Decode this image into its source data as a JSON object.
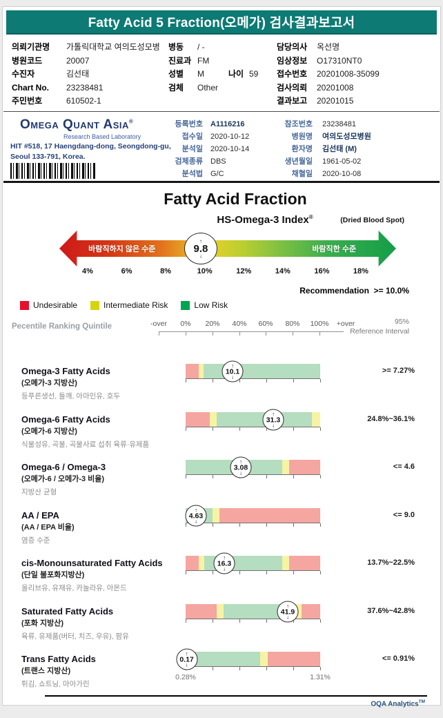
{
  "page": {
    "banner_title": "Fatty Acid 5 Fraction(오메가) 검사결과보고서",
    "footer_brand": "OQA Analytics",
    "footer_tm": "TM"
  },
  "patient": {
    "rows_left": [
      {
        "label": "의뢰기관명",
        "value": "가톨릭대학교 여의도성모병"
      },
      {
        "label": "병원코드",
        "value": "20007"
      },
      {
        "label": "수진자",
        "value": "김선태"
      },
      {
        "label": "Chart No.",
        "value": "23238481"
      },
      {
        "label": "주민번호",
        "value": "610502-1"
      }
    ],
    "rows_mid": [
      {
        "label": "병동",
        "value": "/ -"
      },
      {
        "label": "진료과",
        "value": "FM"
      },
      {
        "label": "성별",
        "value": "M",
        "label2": "나이",
        "value2": "59"
      },
      {
        "label": "검체",
        "value": "Other"
      }
    ],
    "rows_right": [
      {
        "label": "담당의사",
        "value": "옥선명"
      },
      {
        "label": "임상정보",
        "value": "O17310NT0"
      },
      {
        "label": "접수번호",
        "value": "20201008-35099"
      },
      {
        "label": "검사의뢰",
        "value": "20201008"
      },
      {
        "label": "결과보고",
        "value": "20201015"
      }
    ]
  },
  "lab": {
    "name": "Omega Quant Asia",
    "reg": "®",
    "tagline": "Research Based Laboratory",
    "address_line1": "HIT #518, 17 Haengdang-dong, Seongdong-gu,",
    "address_line2": "Seoul 133-791, Korea.",
    "fields_mid": [
      {
        "label": "등록번호",
        "value": "A1116216",
        "strong": true
      },
      {
        "label": "접수일",
        "value": "2020-10-12"
      },
      {
        "label": "분석일",
        "value": "2020-10-14"
      },
      {
        "label": "검체종류",
        "value": "DBS"
      },
      {
        "label": "분석법",
        "value": "G/C"
      }
    ],
    "fields_right": [
      {
        "label": "참조번호",
        "value": "23238481"
      },
      {
        "label": "병원명",
        "value": "여의도성모병원",
        "strong": true
      },
      {
        "label": "환자명",
        "value": "김선태 (M)",
        "strong": true
      },
      {
        "label": "생년월일",
        "value": "1961-05-02"
      },
      {
        "label": "채혈일",
        "value": "2020-10-08"
      }
    ]
  },
  "report": {
    "title": "Fatty Acid Fraction",
    "index_label": "HS-Omega-3 Index",
    "index_reg": "®",
    "sample_type": "(Dried Blood Spot)",
    "gauge": {
      "value": "9.8",
      "left_label": "바람직하지 않은 수준",
      "right_label": "바람직한 수준",
      "scale": [
        "4%",
        "6%",
        "8%",
        "10%",
        "12%",
        "14%",
        "16%",
        "18%"
      ],
      "value_pos_pct": 42
    },
    "recommendation": "Recommendation  >= 10.0%",
    "legend": [
      {
        "label": "Undesirable",
        "color": "#e8112d"
      },
      {
        "label": "Intermediate Risk",
        "color": "#d6d40f"
      },
      {
        "label": "Low Risk",
        "color": "#00a551"
      }
    ],
    "quintile_header": "Pecentile Ranking Quintile",
    "axis_labels": [
      "-over",
      "0%",
      "20%",
      "40%",
      "60%",
      "80%",
      "100%",
      "+over"
    ],
    "ref_header_line1": "95%",
    "ref_header_line2": "Reference Interval"
  },
  "rows": [
    {
      "title": "Omega-3 Fatty Acids",
      "subtitle": "(오메가-3 지방산)",
      "desc": "등푸른생선, 들깨, 아마인유, 호두",
      "value": "10.1",
      "reference": ">= 7.27%",
      "marker_pos": 34.9,
      "segments": [
        {
          "c": "r",
          "w": 9.7
        },
        {
          "c": "y",
          "w": 3.6
        },
        {
          "c": "g",
          "w": 86.7
        }
      ]
    },
    {
      "title": "Omega-6 Fatty Acids",
      "subtitle": "(오메가-6 지방산)",
      "desc": "식물성유, 곡물, 곡물사료 섭취 육류·유제품",
      "value": "31.3",
      "reference": "24.8%~36.1%",
      "marker_pos": 65.1,
      "segments": [
        {
          "c": "r",
          "w": 17.9
        },
        {
          "c": "y",
          "w": 5.2
        },
        {
          "c": "g",
          "w": 70.7
        },
        {
          "c": "y",
          "w": 6.2
        }
      ]
    },
    {
      "title": "Omega-6 / Omega-3",
      "subtitle": "(오메가-6 / 오메가-3 비율)",
      "desc": "지방산 균형",
      "value": "3.08",
      "reference": "<= 4.6",
      "marker_pos": 41.0,
      "segments": [
        {
          "c": "g",
          "w": 71.8
        },
        {
          "c": "y",
          "w": 5.1
        },
        {
          "c": "r",
          "w": 23.1
        }
      ]
    },
    {
      "title": "AA / EPA",
      "subtitle": "(AA / EPA 비율)",
      "desc": "염증 수준",
      "value": "4.63",
      "reference": "<= 9.0",
      "marker_pos": 7.7,
      "segments": [
        {
          "c": "g",
          "w": 20.0
        },
        {
          "c": "y",
          "w": 5.1
        },
        {
          "c": "r",
          "w": 74.9
        }
      ]
    },
    {
      "title": "cis-Monounsaturated Fatty Acids",
      "subtitle": "(단일 불포화지방산)",
      "desc": "올리브유, 유채유, 카놀라유, 아몬드",
      "value": "16.3",
      "reference": "13.7%~22.5%",
      "marker_pos": 28.7,
      "segments": [
        {
          "c": "r",
          "w": 9.7
        },
        {
          "c": "y",
          "w": 4.1
        },
        {
          "c": "g",
          "w": 58.0
        },
        {
          "c": "y",
          "w": 5.1
        },
        {
          "c": "r",
          "w": 23.1
        }
      ]
    },
    {
      "title": "Saturated Fatty Acids",
      "subtitle": "(포화 지방산)",
      "desc": "육류, 유제품(버터, 치즈, 우유), 팜유",
      "value": "41.9",
      "reference": "37.6%~42.8%",
      "marker_pos": 75.9,
      "segments": [
        {
          "c": "r",
          "w": 23.1
        },
        {
          "c": "y",
          "w": 5.1
        },
        {
          "c": "g",
          "w": 52.8
        },
        {
          "c": "y",
          "w": 5.2
        },
        {
          "c": "r",
          "w": 13.8
        }
      ]
    },
    {
      "title": "Trans Fatty Acids",
      "subtitle": "(트랜스 지방산)",
      "desc": "튀김, 쇼트닝, 마아가린",
      "value": "0.17",
      "reference": "<= 0.91%",
      "marker_pos": 0.8,
      "segments": [
        {
          "c": "g",
          "w": 55.4
        },
        {
          "c": "y",
          "w": 5.6
        },
        {
          "c": "r",
          "w": 39.0
        }
      ],
      "sub_labels": [
        {
          "text": "0.28%",
          "pos": 0
        },
        {
          "text": "1.31%",
          "pos": 100
        }
      ]
    }
  ],
  "colors": {
    "accent_teal": "#0d7a74",
    "band_red": "#f5a6a0",
    "band_yellow": "#f7f3a4",
    "band_green": "#b5ddbf"
  }
}
